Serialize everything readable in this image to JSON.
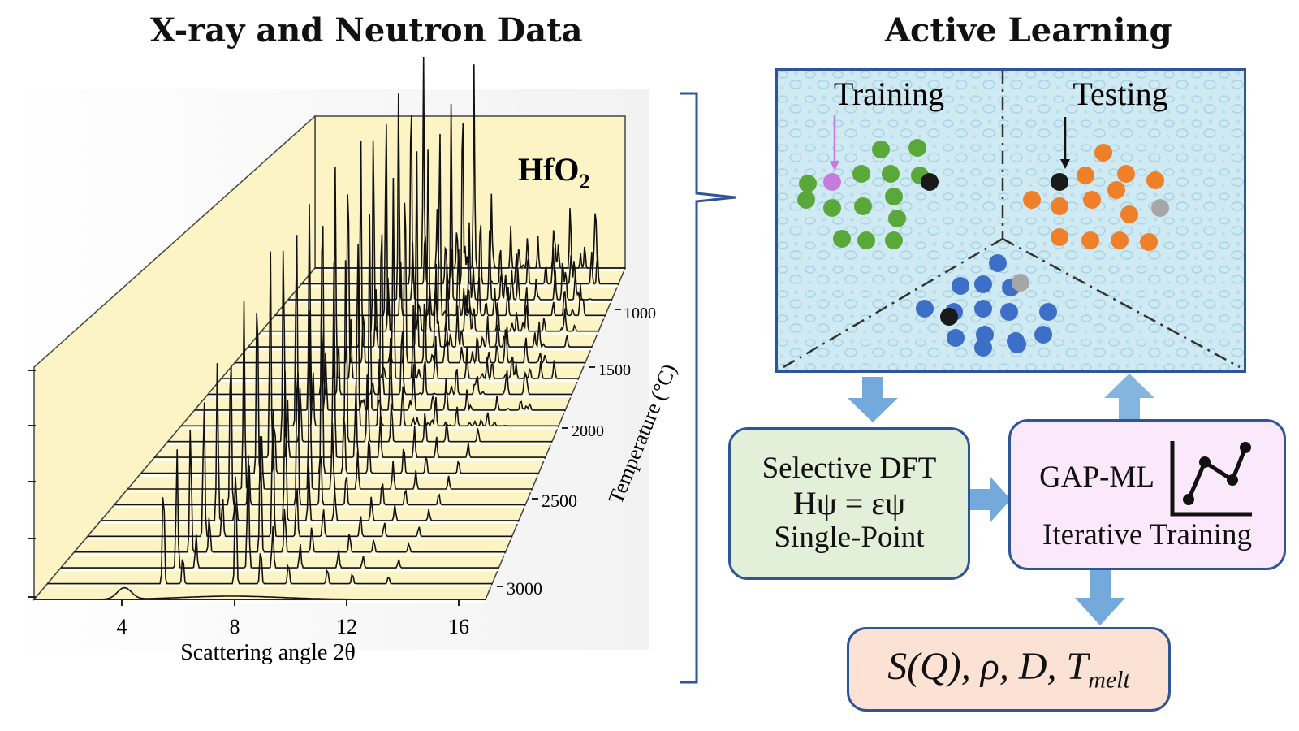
{
  "left_panel": {
    "title": "X-ray and Neutron Data",
    "material_label": "HfO",
    "material_subscript": "2",
    "x_axis_label": "Scattering angle 2θ",
    "x_ticks": [
      "4",
      "8",
      "12",
      "16"
    ],
    "z_axis_label": "Temperature (°C)",
    "z_ticks": [
      "1000",
      "1500",
      "2000",
      "2500",
      "3000"
    ]
  },
  "right_panel": {
    "title": "Active Learning",
    "training_label": "Training",
    "testing_label": "Testing",
    "colors": {
      "training_dots": "#5aa83a",
      "testing_dots": "#f07f2a",
      "third_dots": "#3d6fc8",
      "selected_dot": "#c77be0",
      "black_dot": "#1a1a1a",
      "grey_dot": "#a6a6a6",
      "box_border": "#2f5597",
      "arrow": "#5b9bd5"
    },
    "dft_box": {
      "line1": "Selective DFT",
      "line2": "Hψ = εψ",
      "line3": "Single-Point"
    },
    "gap_box": {
      "line1": "GAP-ML",
      "line2": "Iterative Training"
    },
    "output_box": {
      "text": "S(Q), ρ, D, T",
      "subscript": "melt"
    }
  }
}
